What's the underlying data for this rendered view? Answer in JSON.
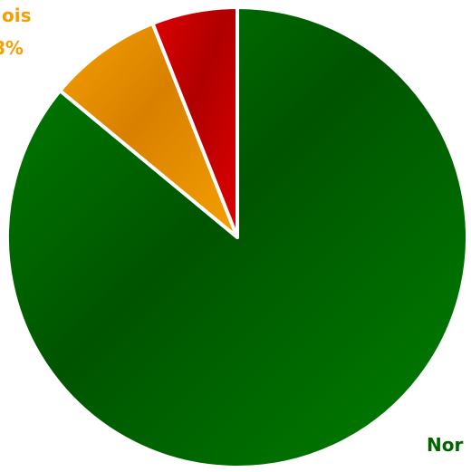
{
  "chart_data": {
    "type": "pie",
    "start_angle_deg": 0,
    "direction": "clockwise",
    "slices": [
      {
        "label": "Nor",
        "value": 86,
        "percent_label": "",
        "color": "#008000",
        "color_dark": "#005400"
      },
      {
        "label": "ois",
        "value": 8,
        "percent_label": "8%",
        "color": "#f5a000",
        "color_dark": "#d98000"
      },
      {
        "label": "",
        "value": 6,
        "percent_label": "",
        "color": "#e00000",
        "color_dark": "#b00000"
      }
    ],
    "label_colors": {
      "Nor": "#006400",
      "ois": "#f5a000"
    },
    "legend": "none",
    "title": ""
  }
}
